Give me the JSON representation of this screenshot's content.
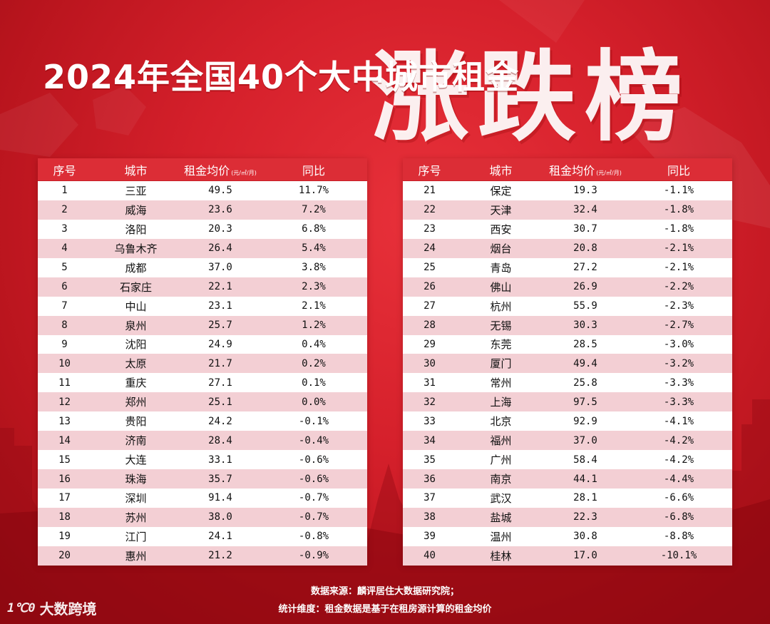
{
  "title": {
    "main": "2024年全国40个大中城市租金",
    "big": "涨跌榜"
  },
  "headers": {
    "rank": "序号",
    "city": "城市",
    "rent": "租金均价",
    "unit": "(元/㎡/月)",
    "yoy": "同比"
  },
  "left_rows": [
    {
      "rank": "1",
      "city": "三亚",
      "rent": "49.5",
      "yoy": "11.7%"
    },
    {
      "rank": "2",
      "city": "威海",
      "rent": "23.6",
      "yoy": "7.2%"
    },
    {
      "rank": "3",
      "city": "洛阳",
      "rent": "20.3",
      "yoy": "6.8%"
    },
    {
      "rank": "4",
      "city": "乌鲁木齐",
      "rent": "26.4",
      "yoy": "5.4%"
    },
    {
      "rank": "5",
      "city": "成都",
      "rent": "37.0",
      "yoy": "3.8%"
    },
    {
      "rank": "6",
      "city": "石家庄",
      "rent": "22.1",
      "yoy": "2.3%"
    },
    {
      "rank": "7",
      "city": "中山",
      "rent": "23.1",
      "yoy": "2.1%"
    },
    {
      "rank": "8",
      "city": "泉州",
      "rent": "25.7",
      "yoy": "1.2%"
    },
    {
      "rank": "9",
      "city": "沈阳",
      "rent": "24.9",
      "yoy": "0.4%"
    },
    {
      "rank": "10",
      "city": "太原",
      "rent": "21.7",
      "yoy": "0.2%"
    },
    {
      "rank": "11",
      "city": "重庆",
      "rent": "27.1",
      "yoy": "0.1%"
    },
    {
      "rank": "12",
      "city": "郑州",
      "rent": "25.1",
      "yoy": "0.0%"
    },
    {
      "rank": "13",
      "city": "贵阳",
      "rent": "24.2",
      "yoy": "-0.1%"
    },
    {
      "rank": "14",
      "city": "济南",
      "rent": "28.4",
      "yoy": "-0.4%"
    },
    {
      "rank": "15",
      "city": "大连",
      "rent": "33.1",
      "yoy": "-0.6%"
    },
    {
      "rank": "16",
      "city": "珠海",
      "rent": "35.7",
      "yoy": "-0.6%"
    },
    {
      "rank": "17",
      "city": "深圳",
      "rent": "91.4",
      "yoy": "-0.7%"
    },
    {
      "rank": "18",
      "city": "苏州",
      "rent": "38.0",
      "yoy": "-0.7%"
    },
    {
      "rank": "19",
      "city": "江门",
      "rent": "24.1",
      "yoy": "-0.8%"
    },
    {
      "rank": "20",
      "city": "惠州",
      "rent": "21.2",
      "yoy": "-0.9%"
    }
  ],
  "right_rows": [
    {
      "rank": "21",
      "city": "保定",
      "rent": "19.3",
      "yoy": "-1.1%"
    },
    {
      "rank": "22",
      "city": "天津",
      "rent": "32.4",
      "yoy": "-1.8%"
    },
    {
      "rank": "23",
      "city": "西安",
      "rent": "30.7",
      "yoy": "-1.8%"
    },
    {
      "rank": "24",
      "city": "烟台",
      "rent": "20.8",
      "yoy": "-2.1%"
    },
    {
      "rank": "25",
      "city": "青岛",
      "rent": "27.2",
      "yoy": "-2.1%"
    },
    {
      "rank": "26",
      "city": "佛山",
      "rent": "26.9",
      "yoy": "-2.2%"
    },
    {
      "rank": "27",
      "city": "杭州",
      "rent": "55.9",
      "yoy": "-2.3%"
    },
    {
      "rank": "28",
      "city": "无锡",
      "rent": "30.3",
      "yoy": "-2.7%"
    },
    {
      "rank": "29",
      "city": "东莞",
      "rent": "28.5",
      "yoy": "-3.0%"
    },
    {
      "rank": "30",
      "city": "厦门",
      "rent": "49.4",
      "yoy": "-3.2%"
    },
    {
      "rank": "31",
      "city": "常州",
      "rent": "25.8",
      "yoy": "-3.3%"
    },
    {
      "rank": "32",
      "city": "上海",
      "rent": "97.5",
      "yoy": "-3.3%"
    },
    {
      "rank": "33",
      "city": "北京",
      "rent": "92.9",
      "yoy": "-4.1%"
    },
    {
      "rank": "34",
      "city": "福州",
      "rent": "37.0",
      "yoy": "-4.2%"
    },
    {
      "rank": "35",
      "city": "广州",
      "rent": "58.4",
      "yoy": "-4.2%"
    },
    {
      "rank": "36",
      "city": "南京",
      "rent": "44.1",
      "yoy": "-4.4%"
    },
    {
      "rank": "37",
      "city": "武汉",
      "rent": "28.1",
      "yoy": "-6.6%"
    },
    {
      "rank": "38",
      "city": "盐城",
      "rent": "22.3",
      "yoy": "-6.8%"
    },
    {
      "rank": "39",
      "city": "温州",
      "rent": "30.8",
      "yoy": "-8.8%"
    },
    {
      "rank": "40",
      "city": "桂林",
      "rent": "17.0",
      "yoy": "-10.1%"
    }
  ],
  "footer": {
    "source": "数据来源：麟评居住大数据研究院；",
    "dimension": "统计维度：租金数据是基于在租房源计算的租金均价"
  },
  "logo": {
    "mark": "1℃0",
    "text": "大数跨境"
  }
}
